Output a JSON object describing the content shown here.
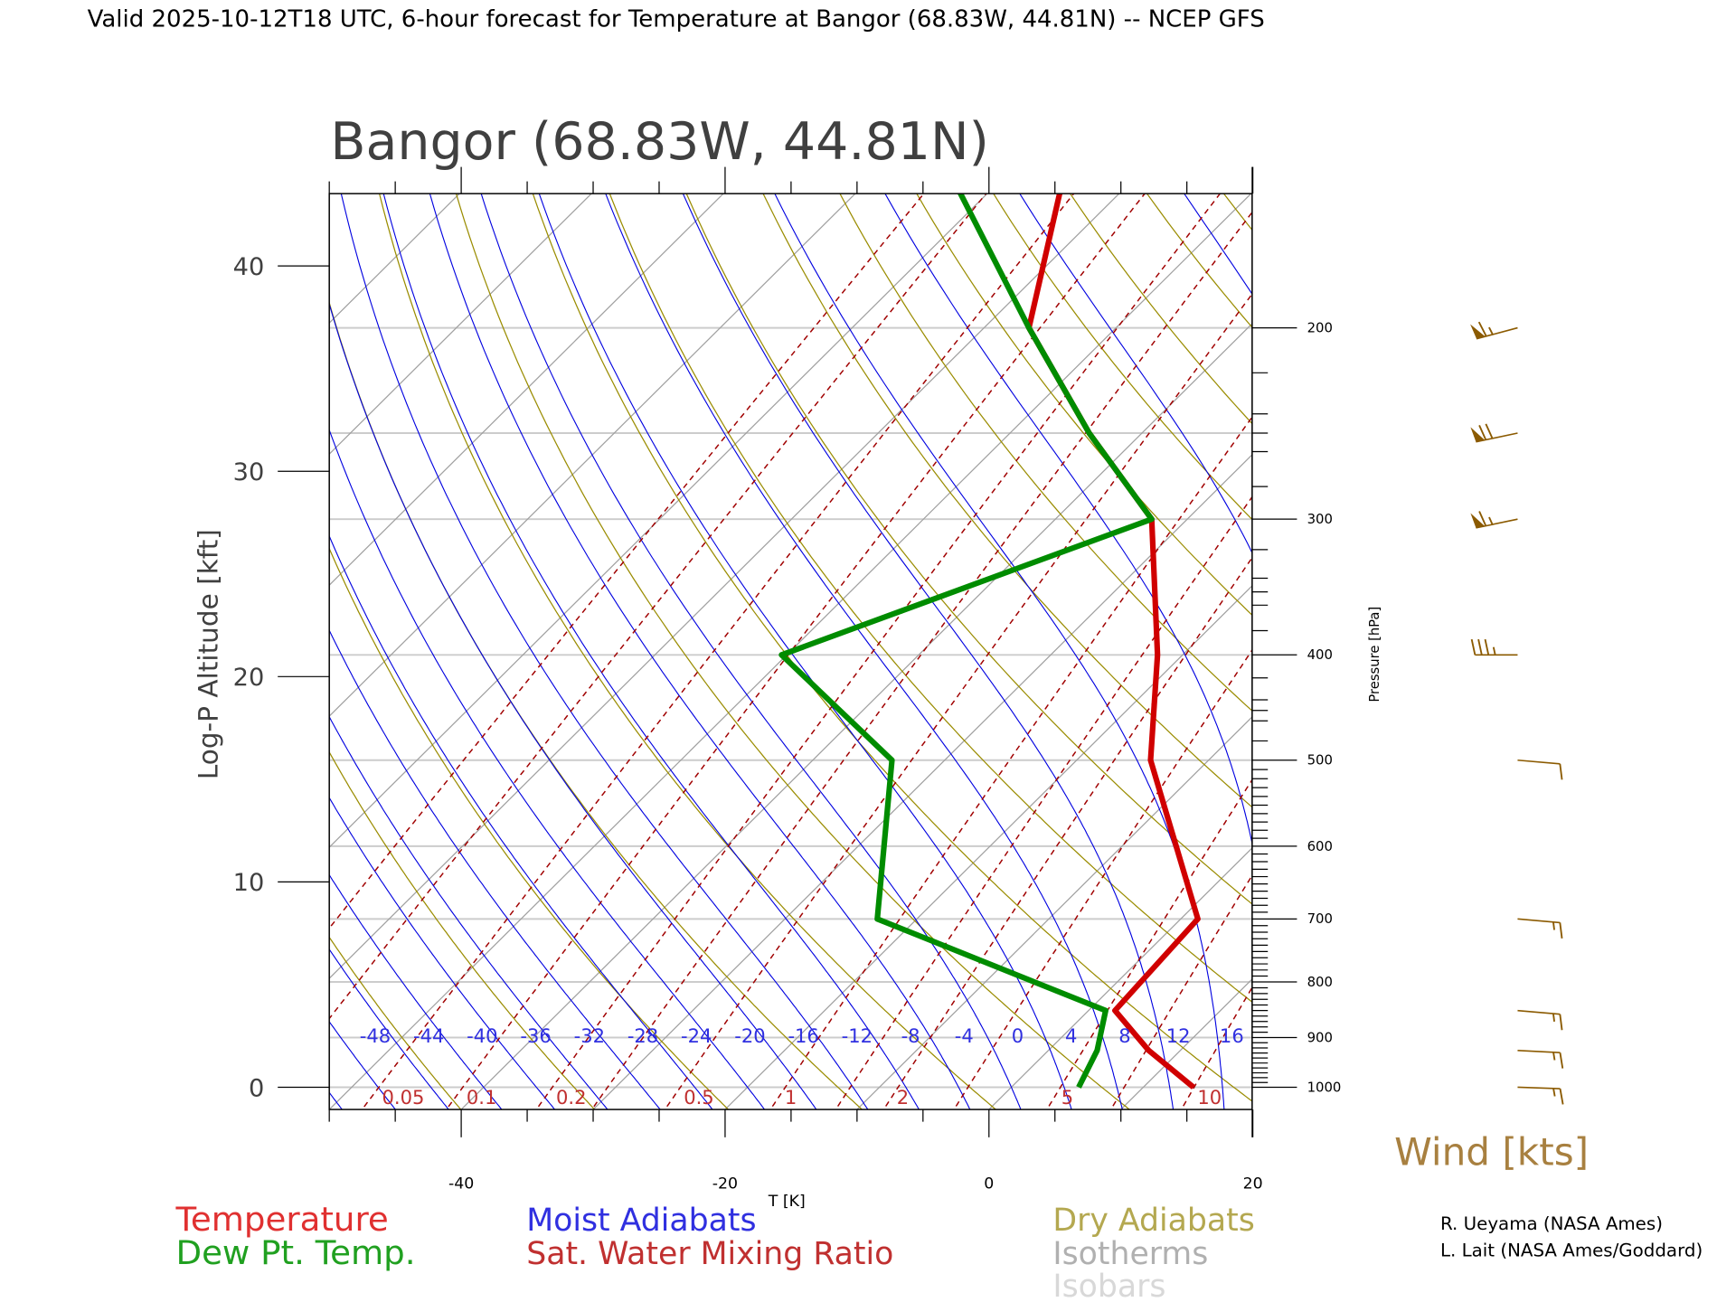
{
  "header": {
    "title": "Valid 2025-10-12T18 UTC, 6-hour forecast for Temperature at Bangor (68.83W, 44.81N) -- NCEP GFS"
  },
  "plot": {
    "title": "Bangor (68.83W, 44.81N)",
    "xlabel": "T [K]",
    "ylabel_left": "Log-P Altitude [kft]",
    "ylabel_right": "Pressure [hPa]",
    "wind_label": "Wind [kts]"
  },
  "legend": {
    "temperature": "Temperature",
    "dewpoint": "Dew Pt. Temp.",
    "moist": "Moist Adiabats",
    "mixing": "Sat. Water Mixing Ratio",
    "dry": "Dry Adiabats",
    "isotherms": "Isotherms",
    "isobars": "Isobars"
  },
  "credits": [
    "R. Ueyama (NASA Ames)",
    "L. Lait (NASA Ames/Goddard)"
  ],
  "colors": {
    "temperature": "#d00000",
    "dewpoint": "#008c00",
    "moist": "#0000e0",
    "mixing": "#a00000",
    "dry": "#9a8c00",
    "isotherms": "#a0a0a0",
    "isobars": "#cccccc",
    "wind": "#8b5a00",
    "legend_temp": "#e03030",
    "legend_dew": "#20a020",
    "legend_moist": "#3030e0",
    "legend_mixing": "#c03030",
    "legend_dry": "#b4a850",
    "legend_iso": "#b0b0b0",
    "legend_isobar": "#d8d8d8",
    "wind_label": "#a88040"
  },
  "chart_data": {
    "type": "line",
    "title": "Bangor (68.83W, 44.81N)",
    "xlabel": "T [K]",
    "ylabel": "Log-P Altitude [kft]",
    "y2label": "Pressure [hPa]",
    "xlim": [
      -50,
      20
    ],
    "plim_hpa": [
      1048,
      150
    ],
    "x_ticks": [
      "-40",
      "-20",
      "0",
      "20"
    ],
    "x_tick_values": [
      -40,
      -20,
      0,
      20
    ],
    "altitude_ticks": [
      "0",
      "10",
      "20",
      "30",
      "40"
    ],
    "altitude_tick_values": [
      0,
      10,
      20,
      30,
      40
    ],
    "pressure_ticks": [
      "200",
      "300",
      "400",
      "500",
      "600",
      "700",
      "800",
      "900",
      "1000"
    ],
    "pressure_tick_values": [
      200,
      300,
      400,
      500,
      600,
      700,
      800,
      900,
      1000
    ],
    "moist_adiabat_labels": [
      "-48",
      "-44",
      "-40",
      "-36",
      "-32",
      "-28",
      "-24",
      "-20",
      "-16",
      "-12",
      "-8",
      "-4",
      "0",
      "4",
      "8",
      "12",
      "16"
    ],
    "mixing_ratio_labels": [
      "0.05",
      "0.1",
      "0.2",
      "0.5",
      "1",
      "2",
      "5",
      "10"
    ],
    "mixing_ratio_values": [
      0.05,
      0.1,
      0.2,
      0.5,
      1,
      2,
      5,
      10
    ],
    "pressure_levels": [
      1000,
      925,
      850,
      700,
      500,
      400,
      300,
      250,
      200,
      150
    ],
    "series": [
      {
        "name": "Temperature",
        "values": [
          13.8,
          7.6,
          2.0,
          1.3,
          -14.4,
          -21.9,
          -32.7,
          -44.0,
          -56.6,
          -64.6
        ]
      },
      {
        "name": "Dew Pt. Temp.",
        "values": [
          5.1,
          3.7,
          1.3,
          -23.0,
          -34.0,
          -50.4,
          -32.7,
          -44.0,
          -56.6,
          -72.2
        ]
      }
    ],
    "winds": [
      {
        "p": 200,
        "dir": 255,
        "speed": 65
      },
      {
        "p": 250,
        "dir": 258,
        "speed": 70
      },
      {
        "p": 300,
        "dir": 258,
        "speed": 65
      },
      {
        "p": 400,
        "dir": 270,
        "speed": 35
      },
      {
        "p": 500,
        "dir": 95,
        "speed": 10
      },
      {
        "p": 700,
        "dir": 95,
        "speed": 15
      },
      {
        "p": 850,
        "dir": 95,
        "speed": 15
      },
      {
        "p": 925,
        "dir": 93,
        "speed": 15
      },
      {
        "p": 1000,
        "dir": 92,
        "speed": 15
      }
    ],
    "grid": true
  }
}
